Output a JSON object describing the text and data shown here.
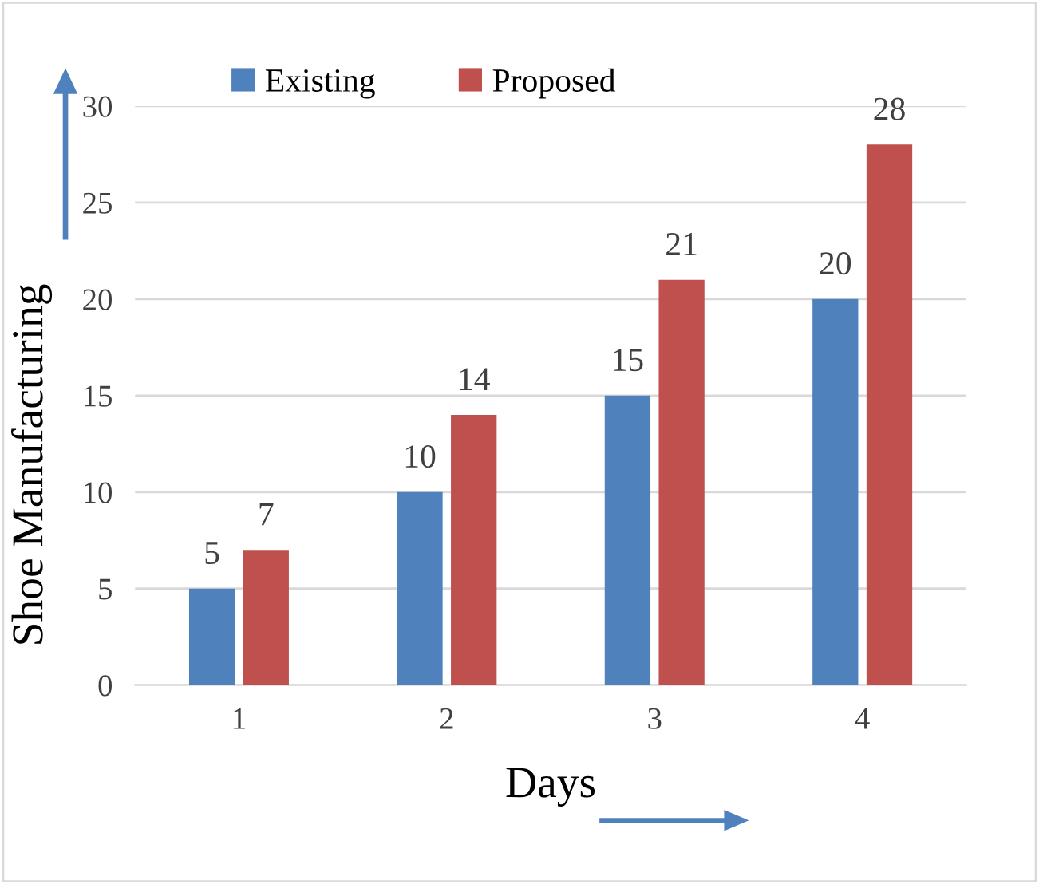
{
  "chart_data": {
    "type": "bar",
    "xlabel": "Days",
    "ylabel": "Shoe Manufacturing",
    "categories": [
      "1",
      "2",
      "3",
      "4"
    ],
    "series": [
      {
        "name": "Existing",
        "color": "#4f81bd",
        "values": [
          5,
          10,
          15,
          20
        ]
      },
      {
        "name": "Proposed",
        "color": "#c0504d",
        "values": [
          7,
          14,
          21,
          28
        ]
      }
    ],
    "ylim": [
      0,
      30
    ],
    "yticks": [
      0,
      5,
      10,
      15,
      20,
      25,
      30
    ],
    "grid": "y",
    "legend": "top left",
    "data_labels": true
  }
}
